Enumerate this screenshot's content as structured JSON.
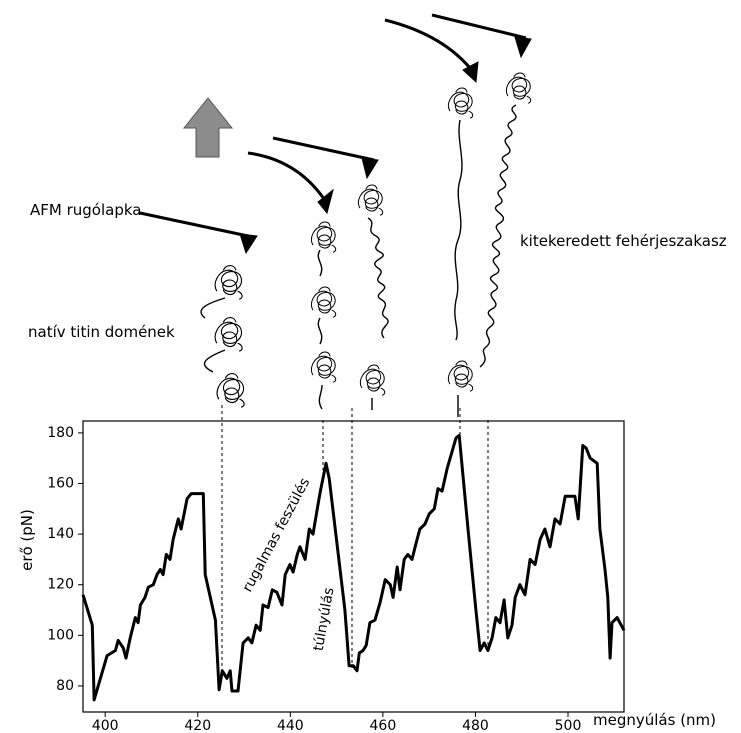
{
  "chart_data": {
    "type": "line",
    "xlabel": "megnyúlás (nm)",
    "ylabel": "erő (pN)",
    "annotations": [
      "rugalmas feszülés",
      "túlnyúlás"
    ],
    "color": "#000000",
    "xlim": [
      395.2,
      512.1
    ],
    "ylim": [
      69.7,
      184.7
    ],
    "xticks": [
      400,
      420,
      440,
      460,
      480,
      500
    ],
    "yticks": [
      80,
      100,
      120,
      140,
      160,
      180
    ],
    "x": [
      395.2,
      397.2,
      397.6,
      400.4,
      402.2,
      402.8,
      403.9,
      404.5,
      405.4,
      406.5,
      407.1,
      407.6,
      408.6,
      409.3,
      410.4,
      411.2,
      411.9,
      412.5,
      413.2,
      414,
      414.7,
      415.8,
      416.4,
      417.7,
      418.6,
      421.2,
      421.6,
      423.8,
      424.6,
      425.3,
      426.3,
      427,
      427.4,
      428.7,
      429.8,
      430.9,
      431.7,
      432.6,
      433.5,
      434.1,
      435.2,
      436.1,
      437.1,
      438.2,
      438.9,
      439.9,
      440.6,
      441.5,
      442.1,
      443.2,
      444.1,
      444.9,
      446.4,
      447.7,
      448.4,
      451.8,
      452.7,
      453.6,
      454.4,
      454.9,
      455.7,
      456.4,
      457.2,
      458.3,
      459.4,
      460.5,
      461.6,
      462.2,
      463.1,
      463.7,
      464.6,
      465.4,
      466.3,
      467.4,
      468,
      469.1,
      470,
      471.1,
      471.9,
      472.8,
      473.9,
      475.8,
      476.5,
      478.4,
      480.1,
      481,
      481.9,
      482.7,
      483.6,
      484.4,
      485.3,
      486.2,
      487,
      487.9,
      488.6,
      489.6,
      490.7,
      491.8,
      492.9,
      494,
      495,
      496.1,
      497.2,
      498.3,
      499.4,
      500.4,
      501.5,
      502.2,
      503.2,
      503.9,
      504.8,
      506.3,
      506.9,
      508,
      508.6,
      509.1,
      509.5,
      510.6,
      512.1
    ],
    "values": [
      116,
      104,
      74.5,
      92,
      94,
      98,
      95,
      91,
      99,
      107,
      105,
      112,
      115,
      119,
      120,
      124,
      126,
      124,
      132,
      130,
      138,
      146,
      142,
      154,
      156,
      156,
      124,
      106,
      78.5,
      86,
      83,
      86,
      78,
      78,
      97,
      99,
      97,
      104,
      102,
      112,
      111,
      118,
      117,
      112,
      124,
      128,
      125,
      132,
      135,
      130,
      142,
      140,
      156,
      168,
      162,
      110,
      88,
      88,
      86,
      93,
      94,
      96,
      105,
      106,
      113,
      122,
      120,
      115,
      127,
      118,
      130,
      132,
      130,
      138,
      142,
      144,
      148,
      150,
      158,
      157,
      166,
      178,
      179,
      142,
      110,
      94,
      97,
      94,
      99,
      107,
      105,
      114,
      99,
      104,
      115,
      120,
      116,
      130,
      128,
      138,
      142,
      135,
      146,
      144,
      155,
      155,
      155,
      146,
      175,
      174,
      170,
      168,
      142,
      126,
      115,
      91,
      105,
      107,
      102
    ]
  },
  "diagram": {
    "labels": [
      "AFM rugólapka",
      "natív titin domének",
      "kitekeredett fehérjeszakasz"
    ]
  }
}
